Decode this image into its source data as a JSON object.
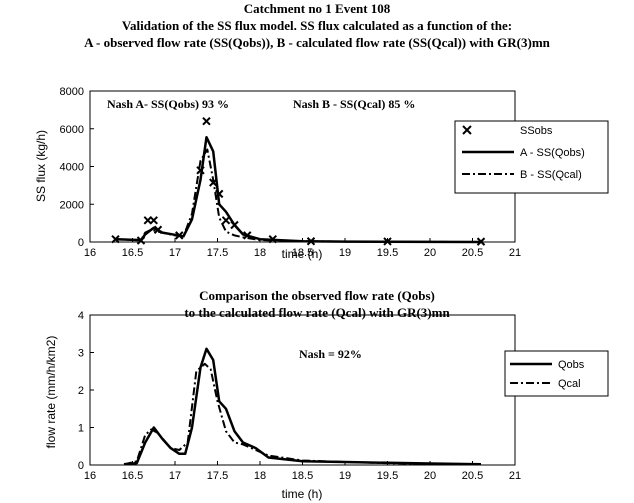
{
  "figure": {
    "title_lines": [
      "Catchment no 1  Event 108",
      "Validation of the SS flux model. SS flux calculated as a function of the:",
      "A - observed flow rate (SS(Qobs)), B - calculated flow rate (SS(Qcal)) with GR(3)mn"
    ]
  },
  "chart_data": [
    {
      "type": "line",
      "xlabel": "time (h)",
      "ylabel": "SS flux (kg/h)",
      "xlim": [
        16,
        21
      ],
      "ylim": [
        0,
        8000
      ],
      "xticks": [
        16,
        16.5,
        17,
        17.5,
        18,
        18.5,
        19,
        19.5,
        20,
        20.5,
        21
      ],
      "yticks": [
        0,
        2000,
        4000,
        6000,
        8000
      ],
      "annotations": [
        "Nash A- SS(Qobs) 93 %",
        "Nash B - SS(Qcal) 85 %"
      ],
      "legend_position": "right",
      "series": [
        {
          "name": "SSobs",
          "style": "markers-x",
          "color": "#000000",
          "x": [
            16.3,
            16.6,
            16.68,
            16.75,
            16.8,
            17.05,
            17.3,
            17.37,
            17.45,
            17.52,
            17.6,
            17.7,
            17.85,
            18.15,
            18.6,
            19.5,
            20.6
          ],
          "y": [
            150,
            80,
            1150,
            1150,
            650,
            350,
            3800,
            6400,
            3150,
            2550,
            1150,
            900,
            350,
            150,
            40,
            30,
            20
          ]
        },
        {
          "name": "A - SS(Qobs)",
          "style": "solid",
          "color": "#000000",
          "x": [
            16.3,
            16.6,
            16.65,
            16.75,
            16.85,
            17.0,
            17.1,
            17.2,
            17.3,
            17.37,
            17.45,
            17.52,
            17.6,
            17.7,
            17.8,
            18.0,
            18.5,
            19.0,
            19.5,
            20.0,
            20.6
          ],
          "y": [
            150,
            100,
            400,
            750,
            500,
            380,
            300,
            1200,
            3300,
            5550,
            4800,
            2000,
            1600,
            900,
            400,
            150,
            40,
            20,
            10,
            5,
            0
          ]
        },
        {
          "name": "B - SS(Qcal)",
          "style": "dashdot",
          "color": "#000000",
          "x": [
            16.3,
            16.6,
            16.65,
            16.72,
            16.8,
            16.9,
            17.0,
            17.1,
            17.2,
            17.3,
            17.38,
            17.45,
            17.52,
            17.6,
            17.7,
            17.8,
            18.0,
            18.5,
            19.0,
            19.5,
            20.0,
            20.6
          ],
          "y": [
            150,
            100,
            500,
            650,
            550,
            450,
            350,
            300,
            1500,
            4300,
            4900,
            3300,
            1300,
            550,
            350,
            250,
            100,
            40,
            20,
            10,
            5,
            0
          ]
        }
      ]
    },
    {
      "type": "line",
      "title_lines": [
        "Comparison the observed flow rate (Qobs)",
        "to the calculated flow rate (Qcal) with GR(3)mn"
      ],
      "xlabel": "time (h)",
      "ylabel": "flow rate (mm/h/km2)",
      "xlim": [
        16,
        21
      ],
      "ylim": [
        0,
        4
      ],
      "xticks": [
        16,
        16.5,
        17,
        17.5,
        18,
        18.5,
        19,
        19.5,
        20,
        20.5,
        21
      ],
      "yticks": [
        0,
        1,
        2,
        3,
        4
      ],
      "annotations": [
        "Nash =  92%"
      ],
      "legend_position": "right",
      "series": [
        {
          "name": "Qobs",
          "style": "solid",
          "color": "#000000",
          "x": [
            16.4,
            16.55,
            16.65,
            16.75,
            16.85,
            16.95,
            17.05,
            17.12,
            17.2,
            17.3,
            17.37,
            17.45,
            17.52,
            17.6,
            17.7,
            17.8,
            17.95,
            18.1,
            18.5,
            19.0,
            19.5,
            20.0,
            20.6
          ],
          "y": [
            0.02,
            0.05,
            0.6,
            1.0,
            0.7,
            0.45,
            0.3,
            0.3,
            1.0,
            2.6,
            3.1,
            2.8,
            1.7,
            1.5,
            0.9,
            0.6,
            0.45,
            0.2,
            0.1,
            0.08,
            0.06,
            0.04,
            0.02
          ]
        },
        {
          "name": "Qcal",
          "style": "dashdot",
          "color": "#000000",
          "x": [
            16.4,
            16.55,
            16.65,
            16.72,
            16.8,
            16.95,
            17.05,
            17.15,
            17.25,
            17.35,
            17.42,
            17.5,
            17.6,
            17.7,
            17.8,
            17.95,
            18.1,
            18.5,
            19.0,
            19.5,
            20.0,
            20.6
          ],
          "y": [
            0.02,
            0.1,
            0.8,
            0.95,
            0.85,
            0.45,
            0.4,
            0.6,
            2.5,
            2.7,
            2.55,
            1.7,
            0.9,
            0.6,
            0.55,
            0.4,
            0.25,
            0.12,
            0.08,
            0.05,
            0.03,
            0.02
          ]
        }
      ]
    }
  ]
}
